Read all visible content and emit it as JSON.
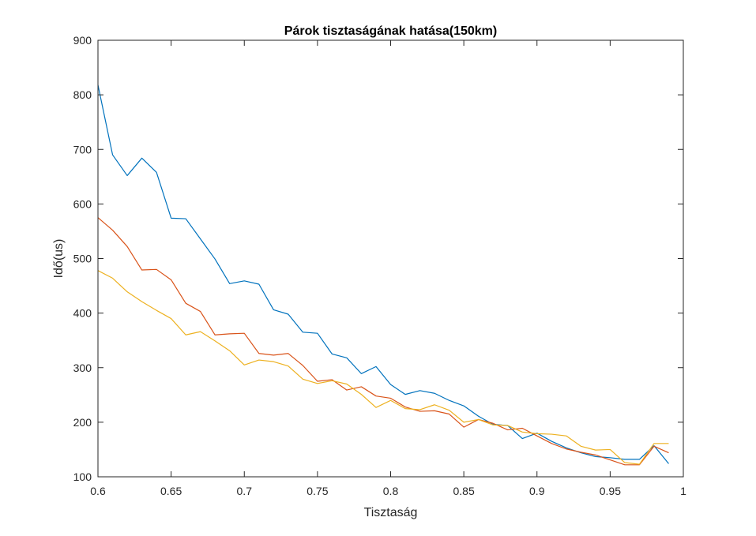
{
  "chart_data": {
    "type": "line",
    "title": "Párok tisztaságának hatása(150km)",
    "xlabel": "Tisztaság",
    "ylabel": "Idő(us)",
    "xlim": [
      0.6,
      1.0
    ],
    "ylim": [
      100,
      900
    ],
    "xticks": [
      0.6,
      0.65,
      0.7,
      0.75,
      0.8,
      0.85,
      0.9,
      0.95,
      1.0
    ],
    "xtick_labels": [
      "0.6",
      "0.65",
      "0.7",
      "0.75",
      "0.8",
      "0.85",
      "0.9",
      "0.95",
      "1"
    ],
    "yticks": [
      100,
      200,
      300,
      400,
      500,
      600,
      700,
      800,
      900
    ],
    "ytick_labels": [
      "100",
      "200",
      "300",
      "400",
      "500",
      "600",
      "700",
      "800",
      "900"
    ],
    "grid": false,
    "legend": "none",
    "x": [
      0.6,
      0.61,
      0.62,
      0.63,
      0.64,
      0.65,
      0.66,
      0.67,
      0.68,
      0.69,
      0.7,
      0.71,
      0.72,
      0.73,
      0.74,
      0.75,
      0.76,
      0.77,
      0.78,
      0.79,
      0.8,
      0.81,
      0.82,
      0.83,
      0.84,
      0.85,
      0.86,
      0.87,
      0.88,
      0.89,
      0.9,
      0.91,
      0.92,
      0.93,
      0.94,
      0.95,
      0.96,
      0.97,
      0.98,
      0.99
    ],
    "series": [
      {
        "color": "#0072BD",
        "values": [
          818,
          690,
          652,
          684,
          658,
          574,
          573,
          536,
          499,
          454,
          459,
          453,
          406,
          398,
          365,
          363,
          325,
          318,
          289,
          302,
          269,
          251,
          258,
          253,
          240,
          230,
          211,
          196,
          194,
          170,
          180,
          165,
          153,
          144,
          137,
          135,
          132,
          132,
          157,
          124
        ]
      },
      {
        "color": "#D95319",
        "values": [
          575,
          552,
          522,
          479,
          480,
          461,
          418,
          403,
          360,
          362,
          363,
          326,
          323,
          326,
          304,
          275,
          278,
          259,
          265,
          248,
          244,
          228,
          220,
          221,
          215,
          191,
          205,
          198,
          186,
          189,
          175,
          161,
          151,
          145,
          140,
          131,
          122,
          122,
          156,
          144
        ]
      },
      {
        "color": "#EDB120",
        "values": [
          478,
          464,
          439,
          421,
          405,
          390,
          360,
          366,
          349,
          331,
          305,
          314,
          311,
          303,
          279,
          271,
          276,
          270,
          251,
          227,
          240,
          225,
          223,
          232,
          222,
          200,
          205,
          195,
          194,
          182,
          179,
          178,
          175,
          156,
          149,
          150,
          126,
          123,
          161,
          161
        ]
      }
    ]
  }
}
